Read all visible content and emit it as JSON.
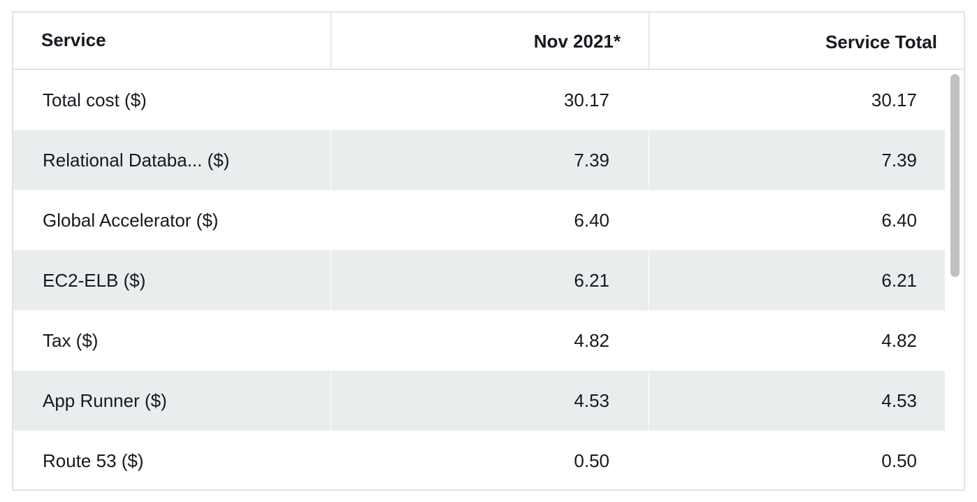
{
  "table": {
    "headers": {
      "service": "Service",
      "month": "Nov 2021*",
      "total": "Service Total"
    },
    "rows": [
      {
        "service": "Total cost ($)",
        "month": "30.17",
        "total": "30.17"
      },
      {
        "service": "Relational Databa... ($)",
        "month": "7.39",
        "total": "7.39"
      },
      {
        "service": "Global Accelerator ($)",
        "month": "6.40",
        "total": "6.40"
      },
      {
        "service": "EC2-ELB ($)",
        "month": "6.21",
        "total": "6.21"
      },
      {
        "service": "Tax ($)",
        "month": "4.82",
        "total": "4.82"
      },
      {
        "service": "App Runner ($)",
        "month": "4.53",
        "total": "4.53"
      },
      {
        "service": "Route 53 ($)",
        "month": "0.50",
        "total": "0.50"
      }
    ]
  },
  "colors": {
    "stripe": "#eaeded",
    "border": "#e2e3e4",
    "text": "#16191f",
    "scrollbar_thumb": "#c1c1c1"
  }
}
